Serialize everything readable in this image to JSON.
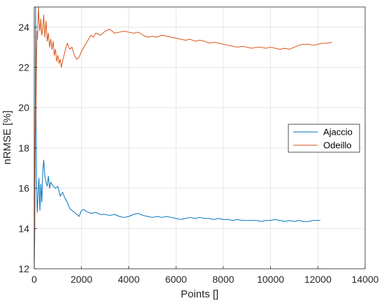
{
  "chart_data": {
    "type": "line",
    "xlabel": "Points []",
    "ylabel": "nRMSE [%]",
    "xlim": [
      0,
      14000
    ],
    "ylim": [
      12,
      25
    ],
    "x_ticks": [
      0,
      2000,
      4000,
      6000,
      8000,
      10000,
      12000,
      14000
    ],
    "y_ticks": [
      12,
      14,
      16,
      18,
      20,
      22,
      24
    ],
    "x_tick_labels": [
      "0",
      "2000",
      "4000",
      "6000",
      "8000",
      "10000",
      "12000",
      "14000"
    ],
    "y_tick_labels": [
      "12",
      "14",
      "16",
      "18",
      "20",
      "22",
      "24"
    ],
    "grid": true,
    "legend_position": "center-right",
    "series": [
      {
        "name": "Ajaccio",
        "color": "#0072BD",
        "points": [
          [
            0,
            12.0
          ],
          [
            20,
            13.5
          ],
          [
            40,
            17.2
          ],
          [
            60,
            25.0
          ],
          [
            80,
            19.0
          ],
          [
            100,
            16.2
          ],
          [
            130,
            14.8
          ],
          [
            160,
            15.6
          ],
          [
            200,
            16.5
          ],
          [
            240,
            14.9
          ],
          [
            280,
            16.2
          ],
          [
            320,
            15.3
          ],
          [
            360,
            16.8
          ],
          [
            400,
            17.4
          ],
          [
            450,
            16.6
          ],
          [
            500,
            16.3
          ],
          [
            550,
            16.1
          ],
          [
            600,
            16.6
          ],
          [
            650,
            16.0
          ],
          [
            700,
            16.3
          ],
          [
            800,
            16.1
          ],
          [
            900,
            16.0
          ],
          [
            1000,
            16.1
          ],
          [
            1100,
            15.6
          ],
          [
            1200,
            15.8
          ],
          [
            1300,
            15.5
          ],
          [
            1400,
            15.3
          ],
          [
            1500,
            15.0
          ],
          [
            1600,
            14.9
          ],
          [
            1700,
            14.8
          ],
          [
            1800,
            14.7
          ],
          [
            1900,
            14.6
          ],
          [
            2000,
            14.9
          ],
          [
            2100,
            14.95
          ],
          [
            2200,
            14.85
          ],
          [
            2400,
            14.75
          ],
          [
            2600,
            14.8
          ],
          [
            2800,
            14.7
          ],
          [
            3000,
            14.7
          ],
          [
            3200,
            14.65
          ],
          [
            3400,
            14.7
          ],
          [
            3600,
            14.6
          ],
          [
            3800,
            14.55
          ],
          [
            4000,
            14.6
          ],
          [
            4200,
            14.7
          ],
          [
            4400,
            14.75
          ],
          [
            4600,
            14.65
          ],
          [
            4800,
            14.6
          ],
          [
            5000,
            14.55
          ],
          [
            5200,
            14.6
          ],
          [
            5400,
            14.55
          ],
          [
            5600,
            14.6
          ],
          [
            5800,
            14.55
          ],
          [
            6000,
            14.5
          ],
          [
            6200,
            14.45
          ],
          [
            6400,
            14.5
          ],
          [
            6600,
            14.55
          ],
          [
            6800,
            14.5
          ],
          [
            7000,
            14.55
          ],
          [
            7200,
            14.5
          ],
          [
            7400,
            14.5
          ],
          [
            7600,
            14.45
          ],
          [
            7800,
            14.5
          ],
          [
            8000,
            14.45
          ],
          [
            8200,
            14.45
          ],
          [
            8400,
            14.4
          ],
          [
            8600,
            14.45
          ],
          [
            8800,
            14.4
          ],
          [
            9000,
            14.4
          ],
          [
            9200,
            14.4
          ],
          [
            9400,
            14.4
          ],
          [
            9600,
            14.35
          ],
          [
            9800,
            14.4
          ],
          [
            10000,
            14.4
          ],
          [
            10200,
            14.45
          ],
          [
            10400,
            14.4
          ],
          [
            10600,
            14.35
          ],
          [
            10800,
            14.4
          ],
          [
            11000,
            14.35
          ],
          [
            11200,
            14.4
          ],
          [
            11400,
            14.35
          ],
          [
            11600,
            14.35
          ],
          [
            11800,
            14.4
          ],
          [
            12000,
            14.4
          ],
          [
            12100,
            14.4
          ]
        ]
      },
      {
        "name": "Odeillo",
        "color": "#D95319",
        "points": [
          [
            0,
            12.2
          ],
          [
            20,
            16.0
          ],
          [
            40,
            20.0
          ],
          [
            60,
            18.8
          ],
          [
            80,
            20.5
          ],
          [
            100,
            22.6
          ],
          [
            120,
            23.8
          ],
          [
            140,
            23.4
          ],
          [
            160,
            24.3
          ],
          [
            180,
            25.0
          ],
          [
            210,
            24.2
          ],
          [
            240,
            23.8
          ],
          [
            280,
            24.4
          ],
          [
            320,
            23.6
          ],
          [
            360,
            23.9
          ],
          [
            400,
            24.6
          ],
          [
            450,
            23.5
          ],
          [
            500,
            24.3
          ],
          [
            550,
            23.3
          ],
          [
            600,
            23.7
          ],
          [
            650,
            23.0
          ],
          [
            700,
            23.4
          ],
          [
            750,
            22.9
          ],
          [
            800,
            23.3
          ],
          [
            850,
            22.6
          ],
          [
            900,
            22.9
          ],
          [
            950,
            22.3
          ],
          [
            1000,
            22.6
          ],
          [
            1050,
            22.2
          ],
          [
            1100,
            22.4
          ],
          [
            1150,
            22.0
          ],
          [
            1200,
            22.3
          ],
          [
            1300,
            22.8
          ],
          [
            1400,
            23.2
          ],
          [
            1500,
            22.9
          ],
          [
            1600,
            23.0
          ],
          [
            1700,
            22.6
          ],
          [
            1800,
            22.4
          ],
          [
            1900,
            22.5
          ],
          [
            2000,
            22.8
          ],
          [
            2100,
            23.0
          ],
          [
            2200,
            23.2
          ],
          [
            2300,
            23.4
          ],
          [
            2400,
            23.6
          ],
          [
            2500,
            23.5
          ],
          [
            2600,
            23.7
          ],
          [
            2800,
            23.6
          ],
          [
            3000,
            23.8
          ],
          [
            3200,
            23.9
          ],
          [
            3400,
            23.7
          ],
          [
            3600,
            23.75
          ],
          [
            3800,
            23.8
          ],
          [
            4000,
            23.75
          ],
          [
            4200,
            23.7
          ],
          [
            4400,
            23.75
          ],
          [
            4600,
            23.6
          ],
          [
            4800,
            23.5
          ],
          [
            5000,
            23.55
          ],
          [
            5200,
            23.5
          ],
          [
            5400,
            23.6
          ],
          [
            5600,
            23.55
          ],
          [
            5800,
            23.5
          ],
          [
            6000,
            23.45
          ],
          [
            6200,
            23.4
          ],
          [
            6400,
            23.35
          ],
          [
            6600,
            23.4
          ],
          [
            6800,
            23.3
          ],
          [
            7000,
            23.35
          ],
          [
            7200,
            23.3
          ],
          [
            7400,
            23.2
          ],
          [
            7600,
            23.25
          ],
          [
            7800,
            23.2
          ],
          [
            8000,
            23.15
          ],
          [
            8200,
            23.1
          ],
          [
            8400,
            23.05
          ],
          [
            8600,
            23.0
          ],
          [
            8800,
            23.05
          ],
          [
            9000,
            23.0
          ],
          [
            9200,
            22.95
          ],
          [
            9400,
            23.0
          ],
          [
            9600,
            23.0
          ],
          [
            9800,
            22.95
          ],
          [
            10000,
            23.0
          ],
          [
            10200,
            22.95
          ],
          [
            10400,
            22.9
          ],
          [
            10600,
            22.95
          ],
          [
            10800,
            22.9
          ],
          [
            11000,
            23.0
          ],
          [
            11200,
            23.1
          ],
          [
            11400,
            23.15
          ],
          [
            11600,
            23.15
          ],
          [
            11800,
            23.1
          ],
          [
            12000,
            23.15
          ],
          [
            12200,
            23.2
          ],
          [
            12400,
            23.2
          ],
          [
            12600,
            23.25
          ]
        ]
      }
    ]
  }
}
